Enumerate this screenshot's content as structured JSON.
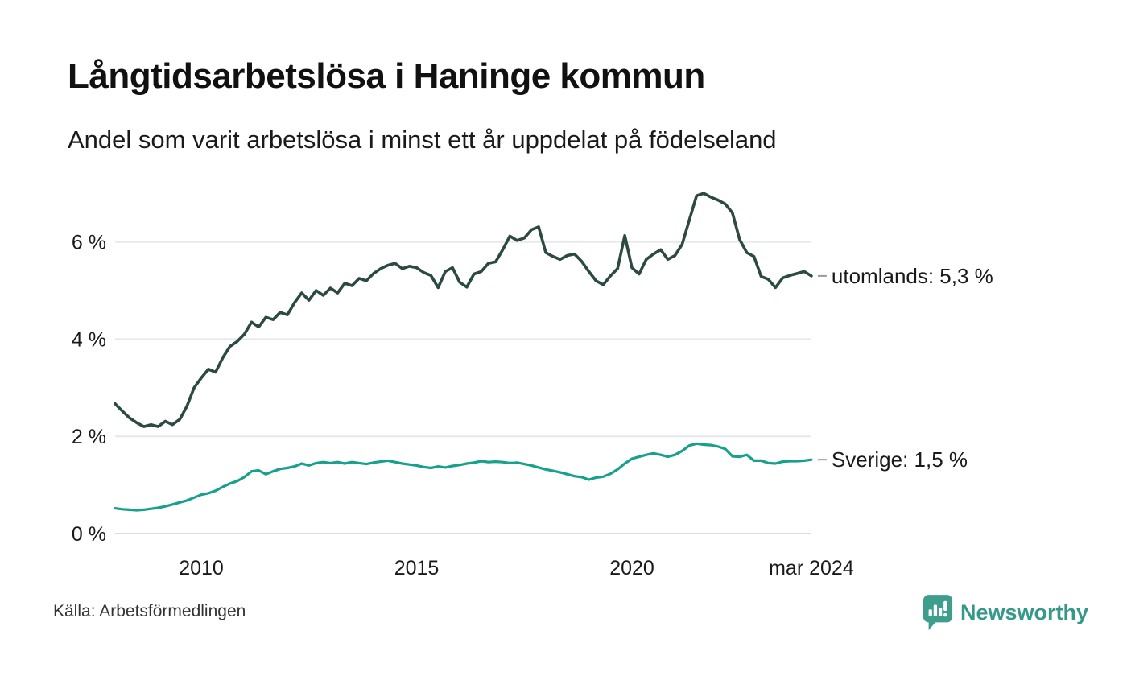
{
  "header": {
    "title": "Långtidsarbetslösa i Haninge kommun",
    "subtitle": "Andel som varit arbetslösa i minst ett år uppdelat på födelseland"
  },
  "footer": {
    "source": "Källa: Arbetsförmedlingen",
    "brand": "Newsworthy",
    "brand_color": "#369889",
    "brand_icon_color": "#3d9e8e"
  },
  "chart_data": {
    "type": "line",
    "title": "Långtidsarbetslösa i Haninge kommun",
    "subtitle": "Andel som varit arbetslösa i minst ett år uppdelat på födelseland",
    "x_start": 2008.0,
    "x_step_years": 0.166667,
    "xlim": [
      2008.0,
      2024.25
    ],
    "ylim": [
      0,
      7.3
    ],
    "grid": "horizontal",
    "grid_color": "#e8e8ec",
    "axis_line_color": "#dcdce1",
    "tick_label_color": "#1a1a1a",
    "label_dash_color": "#9a9a9a",
    "xticks": [
      {
        "label": "2010",
        "year": 2010
      },
      {
        "label": "2015",
        "year": 2015
      },
      {
        "label": "2020",
        "year": 2020
      },
      {
        "label": "mar 2024",
        "year": 2024.167
      }
    ],
    "yticks": [
      {
        "label": "0 %",
        "value": 0
      },
      {
        "label": "2 %",
        "value": 2
      },
      {
        "label": "4 %",
        "value": 4
      },
      {
        "label": "6 %",
        "value": 6
      }
    ],
    "series": [
      {
        "name": "utomlands",
        "label": "utomlands: 5,3 %",
        "end_value_text": "5,3 %",
        "color": "#2c4a43",
        "stroke_width": 3.6,
        "values": [
          2.67,
          2.52,
          2.38,
          2.28,
          2.2,
          2.24,
          2.2,
          2.31,
          2.24,
          2.35,
          2.62,
          3.0,
          3.2,
          3.38,
          3.32,
          3.62,
          3.85,
          3.95,
          4.1,
          4.35,
          4.25,
          4.45,
          4.4,
          4.55,
          4.5,
          4.75,
          4.95,
          4.8,
          5.0,
          4.9,
          5.05,
          4.95,
          5.15,
          5.1,
          5.25,
          5.2,
          5.35,
          5.45,
          5.52,
          5.56,
          5.45,
          5.5,
          5.47,
          5.37,
          5.31,
          5.06,
          5.39,
          5.47,
          5.17,
          5.07,
          5.34,
          5.39,
          5.56,
          5.59,
          5.84,
          6.12,
          6.03,
          6.08,
          6.25,
          6.31,
          5.78,
          5.7,
          5.64,
          5.72,
          5.75,
          5.6,
          5.39,
          5.2,
          5.12,
          5.3,
          5.45,
          6.13,
          5.47,
          5.34,
          5.64,
          5.75,
          5.84,
          5.64,
          5.72,
          5.95,
          6.45,
          6.95,
          7.0,
          6.92,
          6.86,
          6.78,
          6.6,
          6.05,
          5.78,
          5.7,
          5.29,
          5.23,
          5.06,
          5.26,
          5.31,
          5.35,
          5.39,
          5.3
        ]
      },
      {
        "name": "Sverige",
        "label": "Sverige: 1,5 %",
        "end_value_text": "1,5 %",
        "color": "#17a08c",
        "stroke_width": 3.2,
        "values": [
          0.52,
          0.5,
          0.49,
          0.48,
          0.49,
          0.51,
          0.53,
          0.56,
          0.6,
          0.64,
          0.68,
          0.74,
          0.8,
          0.83,
          0.88,
          0.96,
          1.03,
          1.08,
          1.16,
          1.28,
          1.3,
          1.22,
          1.28,
          1.33,
          1.35,
          1.38,
          1.44,
          1.4,
          1.45,
          1.47,
          1.45,
          1.47,
          1.44,
          1.47,
          1.45,
          1.43,
          1.46,
          1.48,
          1.5,
          1.47,
          1.44,
          1.42,
          1.4,
          1.37,
          1.35,
          1.38,
          1.36,
          1.39,
          1.41,
          1.44,
          1.46,
          1.49,
          1.47,
          1.48,
          1.47,
          1.45,
          1.46,
          1.43,
          1.4,
          1.36,
          1.32,
          1.29,
          1.26,
          1.22,
          1.18,
          1.16,
          1.11,
          1.15,
          1.17,
          1.23,
          1.32,
          1.44,
          1.54,
          1.58,
          1.62,
          1.65,
          1.62,
          1.58,
          1.62,
          1.7,
          1.81,
          1.85,
          1.83,
          1.82,
          1.79,
          1.74,
          1.59,
          1.58,
          1.62,
          1.5,
          1.5,
          1.45,
          1.44,
          1.48,
          1.49,
          1.49,
          1.5,
          1.52
        ]
      }
    ],
    "source": "Källa: Arbetsförmedlingen"
  }
}
